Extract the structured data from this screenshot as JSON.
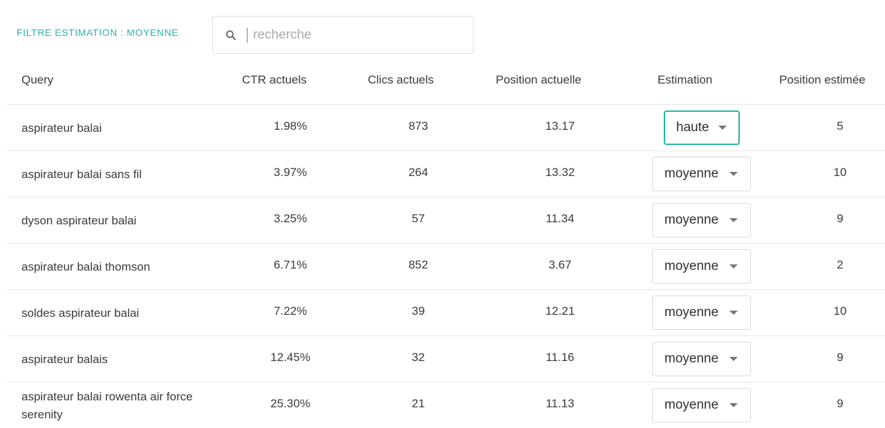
{
  "filter": {
    "label": "FILTRE ESTIMATION : MOYENNE"
  },
  "search": {
    "placeholder": "recherche",
    "value": "",
    "icon": "search-icon"
  },
  "table": {
    "headers": {
      "query": "Query",
      "ctr": "CTR actuels",
      "clicks": "Clics actuels",
      "position": "Position actuelle",
      "estimation": "Estimation",
      "estimated_position": "Position estimée"
    },
    "rows": [
      {
        "query": "aspirateur balai",
        "ctr": "1.98%",
        "clicks": "873",
        "position": "13.17",
        "estimation": "haute",
        "estimated_position": "5",
        "active": true
      },
      {
        "query": "aspirateur balai sans fil",
        "ctr": "3.97%",
        "clicks": "264",
        "position": "13.32",
        "estimation": "moyenne",
        "estimated_position": "10",
        "active": false
      },
      {
        "query": "dyson aspirateur balai",
        "ctr": "3.25%",
        "clicks": "57",
        "position": "11.34",
        "estimation": "moyenne",
        "estimated_position": "9",
        "active": false
      },
      {
        "query": "aspirateur balai thomson",
        "ctr": "6.71%",
        "clicks": "852",
        "position": "3.67",
        "estimation": "moyenne",
        "estimated_position": "2",
        "active": false
      },
      {
        "query": "soldes aspirateur balai",
        "ctr": "7.22%",
        "clicks": "39",
        "position": "12.21",
        "estimation": "moyenne",
        "estimated_position": "10",
        "active": false
      },
      {
        "query": "aspirateur balais",
        "ctr": "12.45%",
        "clicks": "32",
        "position": "11.16",
        "estimation": "moyenne",
        "estimated_position": "9",
        "active": false
      },
      {
        "query": "aspirateur balai rowenta air force serenity",
        "ctr": "25.30%",
        "clicks": "21",
        "position": "11.13",
        "estimation": "moyenne",
        "estimated_position": "9",
        "active": false
      }
    ]
  },
  "colors": {
    "accent": "#2bb3a3",
    "text": "#3a3a3a",
    "border": "#e6e6e6"
  }
}
